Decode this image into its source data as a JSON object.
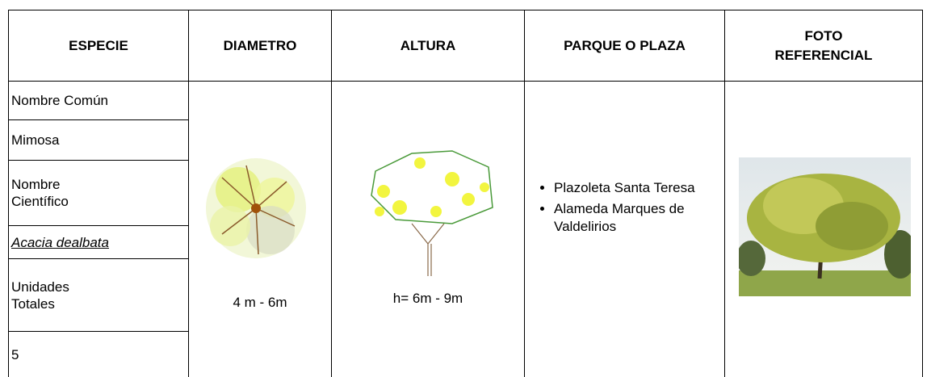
{
  "table": {
    "headers": [
      "ESPECIE",
      "DIAMETRO",
      "ALTURA",
      "PARQUE O PLAZA",
      "FOTO REFERENCIAL"
    ],
    "especie": [
      "Nombre Común",
      "Mimosa",
      "Nombre Científico",
      "Acacia dealbata",
      "Unidades Totales",
      "5"
    ],
    "diametro": "4 m - 6m",
    "altura": "h= 6m - 9m",
    "parques": [
      "Plazoleta Santa Teresa",
      "Alameda Marques de Valdelirios"
    ]
  }
}
